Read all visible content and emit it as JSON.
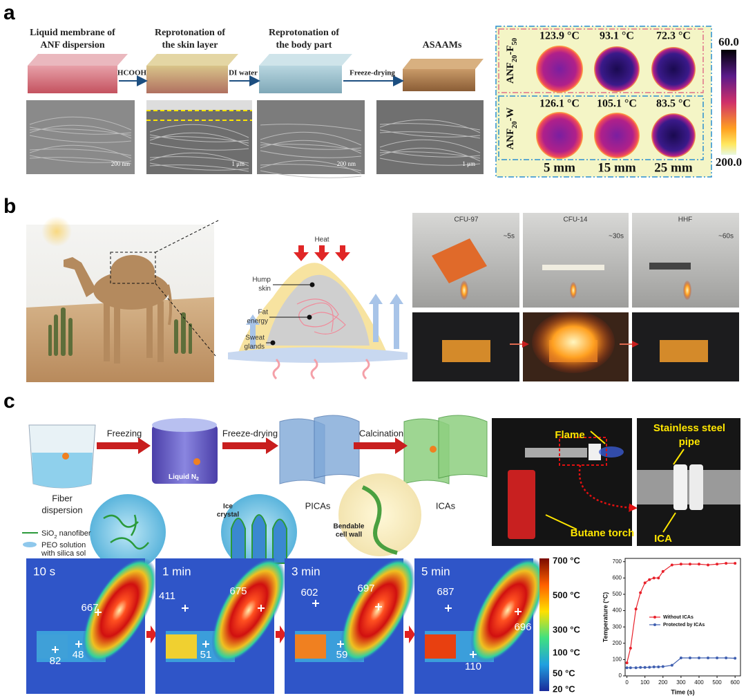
{
  "panel_labels": [
    "a",
    "b",
    "c"
  ],
  "panel_a": {
    "steps": [
      [
        "Liquid membrane of",
        "ANF dispersion"
      ],
      [
        "Reprotonation of",
        "the skin layer"
      ],
      [
        "Reprotonation of",
        "the body part"
      ],
      [
        "ASAAMs"
      ]
    ],
    "arrows": [
      "HCOOH",
      "DI water",
      "Freeze-drying"
    ],
    "scale_bars": [
      "200 nm",
      "1 μm",
      "200 nm",
      "1 μm"
    ],
    "thermal_rows": [
      {
        "label": [
          "ANF",
          "20",
          "-F",
          "50"
        ],
        "temps": [
          "123.9 °C",
          "93.1 °C",
          "72.3 °C"
        ]
      },
      {
        "label": [
          "ANF",
          "20",
          "-W"
        ],
        "temps": [
          "126.1 °C",
          "105.1 °C",
          "83.5 °C"
        ]
      }
    ],
    "thicknesses": [
      "5 mm",
      "15 mm",
      "25 mm"
    ],
    "colorbar": [
      "60.0",
      "200.0"
    ]
  },
  "panel_b": {
    "heat": "Heat",
    "labels": [
      [
        "Hump",
        "skin"
      ],
      [
        "Fat",
        "energy"
      ],
      [
        "Sweat",
        "glands"
      ]
    ],
    "samples": [
      {
        "name": "CFU-97",
        "time": "~5s"
      },
      {
        "name": "CFU-14",
        "time": "~30s"
      },
      {
        "name": "HHF",
        "time": "~60s"
      }
    ]
  },
  "panel_c": {
    "steps": [
      "Freezing",
      "Freeze-drying",
      "Calcination"
    ],
    "fiber_dispersion": [
      "Fiber",
      "dispersion"
    ],
    "liquid": [
      "Liquid N",
      "2"
    ],
    "picas": "PICAs",
    "icas": "ICAs",
    "legend": {
      "fiber": [
        "SiO",
        "2",
        " nanofiber"
      ],
      "solution": [
        "PEO solution",
        "with silica sol"
      ]
    },
    "ice_crystal": [
      "Ice",
      "crystal"
    ],
    "cell_wall": [
      "Bendable",
      "cell wall"
    ],
    "photo_labels": {
      "flame": "Flame",
      "torch": "Butane torch",
      "pipe": [
        "Stainless steel",
        "pipe"
      ],
      "ica": "ICA"
    },
    "thermal_frames": [
      {
        "time": "10 s",
        "readings": [
          667,
          82,
          48
        ]
      },
      {
        "time": "1 min",
        "readings": [
          411,
          675,
          51
        ]
      },
      {
        "time": "3 min",
        "readings": [
          602,
          697,
          59
        ]
      },
      {
        "time": "5 min",
        "readings": [
          687,
          110,
          696
        ]
      }
    ],
    "colorbar": [
      "700 °C",
      "500 °C",
      "300 °C",
      "100 °C",
      "50 °C",
      "20 °C"
    ]
  },
  "chart_data": {
    "type": "line",
    "x_label": "Time (s)",
    "y_label": "Temperature (°C)",
    "x": [
      0,
      20,
      50,
      75,
      100,
      125,
      150,
      175,
      200,
      250,
      300,
      350,
      400,
      450,
      500,
      550,
      600
    ],
    "series": [
      {
        "name": "Without ICAs",
        "color": "#e8202a",
        "values": [
          80,
          170,
          410,
          510,
          570,
          590,
          600,
          600,
          640,
          680,
          685,
          685,
          685,
          680,
          685,
          690,
          690
        ]
      },
      {
        "name": "Protected by ICAs",
        "color": "#3f5fb0",
        "values": [
          50,
          50,
          50,
          52,
          52,
          53,
          55,
          55,
          57,
          65,
          110,
          110,
          110,
          110,
          110,
          110,
          108
        ]
      }
    ],
    "xlim": [
      -10,
      630
    ],
    "xticks": [
      0,
      100,
      200,
      300,
      400,
      500,
      600
    ],
    "ylim": [
      0,
      720
    ],
    "yticks": [
      0,
      100,
      200,
      300,
      400,
      500,
      600,
      700
    ]
  }
}
